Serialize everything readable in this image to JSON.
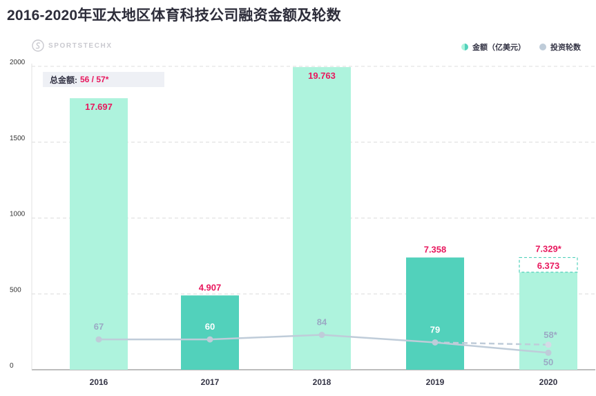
{
  "title": "2016-2020年亚太地区体育科技公司融资金额及轮数",
  "watermark": "SPORTSTECHX",
  "legend": {
    "amount": "金额（亿美元）",
    "rounds": "投资轮数"
  },
  "total": {
    "label": "总金额:",
    "value": "56 / 57*"
  },
  "colors": {
    "light_bar": "#aef3dd",
    "dark_bar": "#52d1bb",
    "line": "#bfccd9",
    "highlight": "#e8175d",
    "dashed_box": "#52d1bb"
  },
  "chart_data": {
    "type": "bar",
    "categories": [
      "2016",
      "2017",
      "2018",
      "2019",
      "2020"
    ],
    "ylim": [
      0,
      2000
    ],
    "yticks": [
      "0",
      "500",
      "1000",
      "1500",
      "2000"
    ],
    "series": [
      {
        "name": "金额（亿美元）",
        "values": [
          1790,
          490,
          1995,
          740,
          643
        ],
        "labels": [
          "17.697",
          "4.907",
          "19.763",
          "7.358",
          "6.373"
        ],
        "shade": [
          "light",
          "dark",
          "light",
          "dark",
          "light"
        ]
      },
      {
        "name": "投资轮数",
        "values": [
          200,
          200,
          230,
          180,
          112
        ],
        "labels": [
          "67",
          "60",
          "84",
          "79",
          "50"
        ]
      }
    ],
    "projection": {
      "bar_value": 740,
      "bar_label": "7.329*",
      "round_value": 165,
      "round_label": "58*"
    }
  }
}
